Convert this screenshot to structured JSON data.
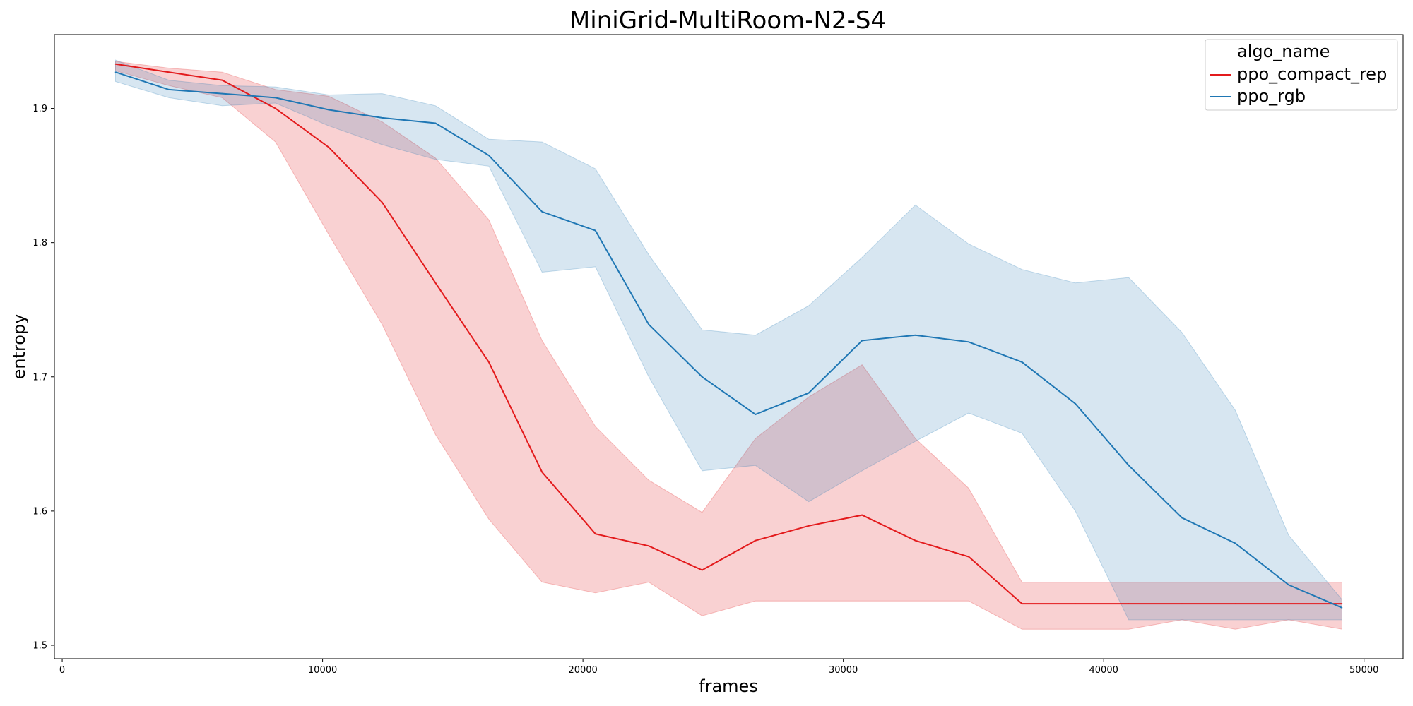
{
  "chart_data": {
    "type": "line",
    "title": "MiniGrid-MultiRoom-N2-S4",
    "xlabel": "frames",
    "ylabel": "entropy",
    "xlim": [
      -300,
      51500
    ],
    "ylim": [
      1.49,
      1.955
    ],
    "xticks": [
      0,
      10000,
      20000,
      30000,
      40000,
      50000
    ],
    "yticks": [
      1.5,
      1.6,
      1.7,
      1.8,
      1.9
    ],
    "legend": {
      "title": "algo_name",
      "placement": "top-right"
    },
    "x": [
      2048,
      4096,
      6144,
      8192,
      10240,
      12288,
      14336,
      16384,
      18432,
      20480,
      22528,
      24576,
      26624,
      28672,
      30720,
      32768,
      34816,
      36864,
      38912,
      40960,
      43008,
      45056,
      47104,
      49152
    ],
    "series": [
      {
        "name": "ppo_compact_rep",
        "color": "#e31a1c",
        "values": [
          1.933,
          1.927,
          1.921,
          1.9,
          1.871,
          1.83,
          1.77,
          1.711,
          1.629,
          1.583,
          1.574,
          1.556,
          1.578,
          1.589,
          1.597,
          1.578,
          1.566,
          1.531,
          1.531,
          1.531,
          1.531,
          1.531,
          1.531,
          1.531
        ],
        "lower": [
          1.928,
          1.917,
          1.908,
          1.875,
          1.806,
          1.739,
          1.657,
          1.594,
          1.547,
          1.539,
          1.547,
          1.522,
          1.533,
          1.533,
          1.533,
          1.533,
          1.533,
          1.512,
          1.512,
          1.512,
          1.519,
          1.512,
          1.519,
          1.512
        ],
        "upper": [
          1.935,
          1.93,
          1.927,
          1.914,
          1.909,
          1.89,
          1.863,
          1.817,
          1.727,
          1.663,
          1.623,
          1.599,
          1.654,
          1.685,
          1.709,
          1.654,
          1.617,
          1.547,
          1.547,
          1.547,
          1.547,
          1.547,
          1.547,
          1.547
        ]
      },
      {
        "name": "ppo_rgb",
        "color": "#1f77b4",
        "values": [
          1.927,
          1.914,
          1.911,
          1.908,
          1.899,
          1.893,
          1.889,
          1.865,
          1.823,
          1.809,
          1.739,
          1.7,
          1.672,
          1.688,
          1.727,
          1.731,
          1.726,
          1.711,
          1.68,
          1.634,
          1.595,
          1.576,
          1.545,
          1.528
        ],
        "lower": [
          1.92,
          1.908,
          1.902,
          1.904,
          1.887,
          1.873,
          1.862,
          1.857,
          1.778,
          1.782,
          1.7,
          1.63,
          1.634,
          1.607,
          1.63,
          1.652,
          1.673,
          1.658,
          1.6,
          1.519,
          1.519,
          1.519,
          1.519,
          1.519
        ],
        "upper": [
          1.936,
          1.921,
          1.917,
          1.916,
          1.91,
          1.911,
          1.902,
          1.877,
          1.875,
          1.855,
          1.791,
          1.735,
          1.731,
          1.753,
          1.789,
          1.828,
          1.799,
          1.78,
          1.77,
          1.774,
          1.733,
          1.675,
          1.582,
          1.534
        ]
      }
    ]
  }
}
